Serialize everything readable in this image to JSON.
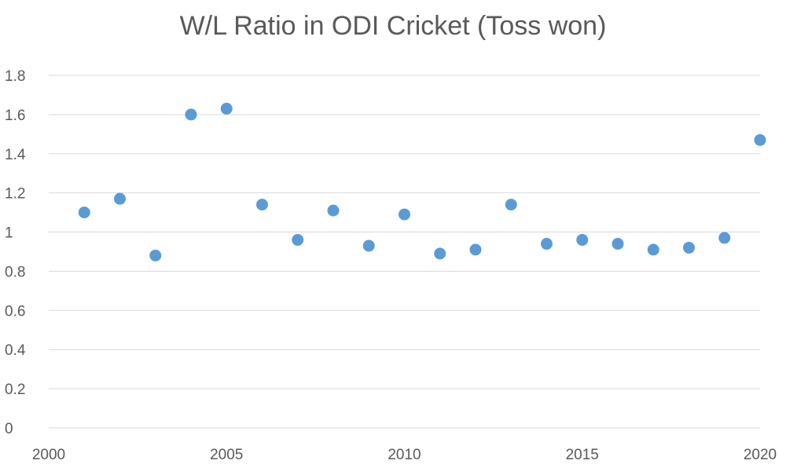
{
  "chart_data": {
    "type": "scatter",
    "title": "W/L Ratio in ODI Cricket (Toss won)",
    "xlabel": "",
    "ylabel": "",
    "xlim": [
      2000,
      2020
    ],
    "ylim": [
      0,
      1.8
    ],
    "x_ticks": [
      "2000",
      "2005",
      "2010",
      "2015",
      "2020"
    ],
    "y_ticks": [
      "0",
      "0.2",
      "0.4",
      "0.6",
      "0.8",
      "1",
      "1.2",
      "1.4",
      "1.6",
      "1.8"
    ],
    "grid": "horizontal",
    "legend": "none",
    "marker_color": "#5b9bd5",
    "points": [
      {
        "x": 2001,
        "y": 1.1
      },
      {
        "x": 2002,
        "y": 1.17
      },
      {
        "x": 2003,
        "y": 0.88
      },
      {
        "x": 2004,
        "y": 1.6
      },
      {
        "x": 2005,
        "y": 1.63
      },
      {
        "x": 2006,
        "y": 1.14
      },
      {
        "x": 2007,
        "y": 0.96
      },
      {
        "x": 2008,
        "y": 1.11
      },
      {
        "x": 2009,
        "y": 0.93
      },
      {
        "x": 2010,
        "y": 1.09
      },
      {
        "x": 2011,
        "y": 0.89
      },
      {
        "x": 2012,
        "y": 0.91
      },
      {
        "x": 2013,
        "y": 1.14
      },
      {
        "x": 2014,
        "y": 0.94
      },
      {
        "x": 2015,
        "y": 0.96
      },
      {
        "x": 2016,
        "y": 0.94
      },
      {
        "x": 2017,
        "y": 0.91
      },
      {
        "x": 2018,
        "y": 0.92
      },
      {
        "x": 2019,
        "y": 0.97
      },
      {
        "x": 2020,
        "y": 1.47
      }
    ]
  }
}
